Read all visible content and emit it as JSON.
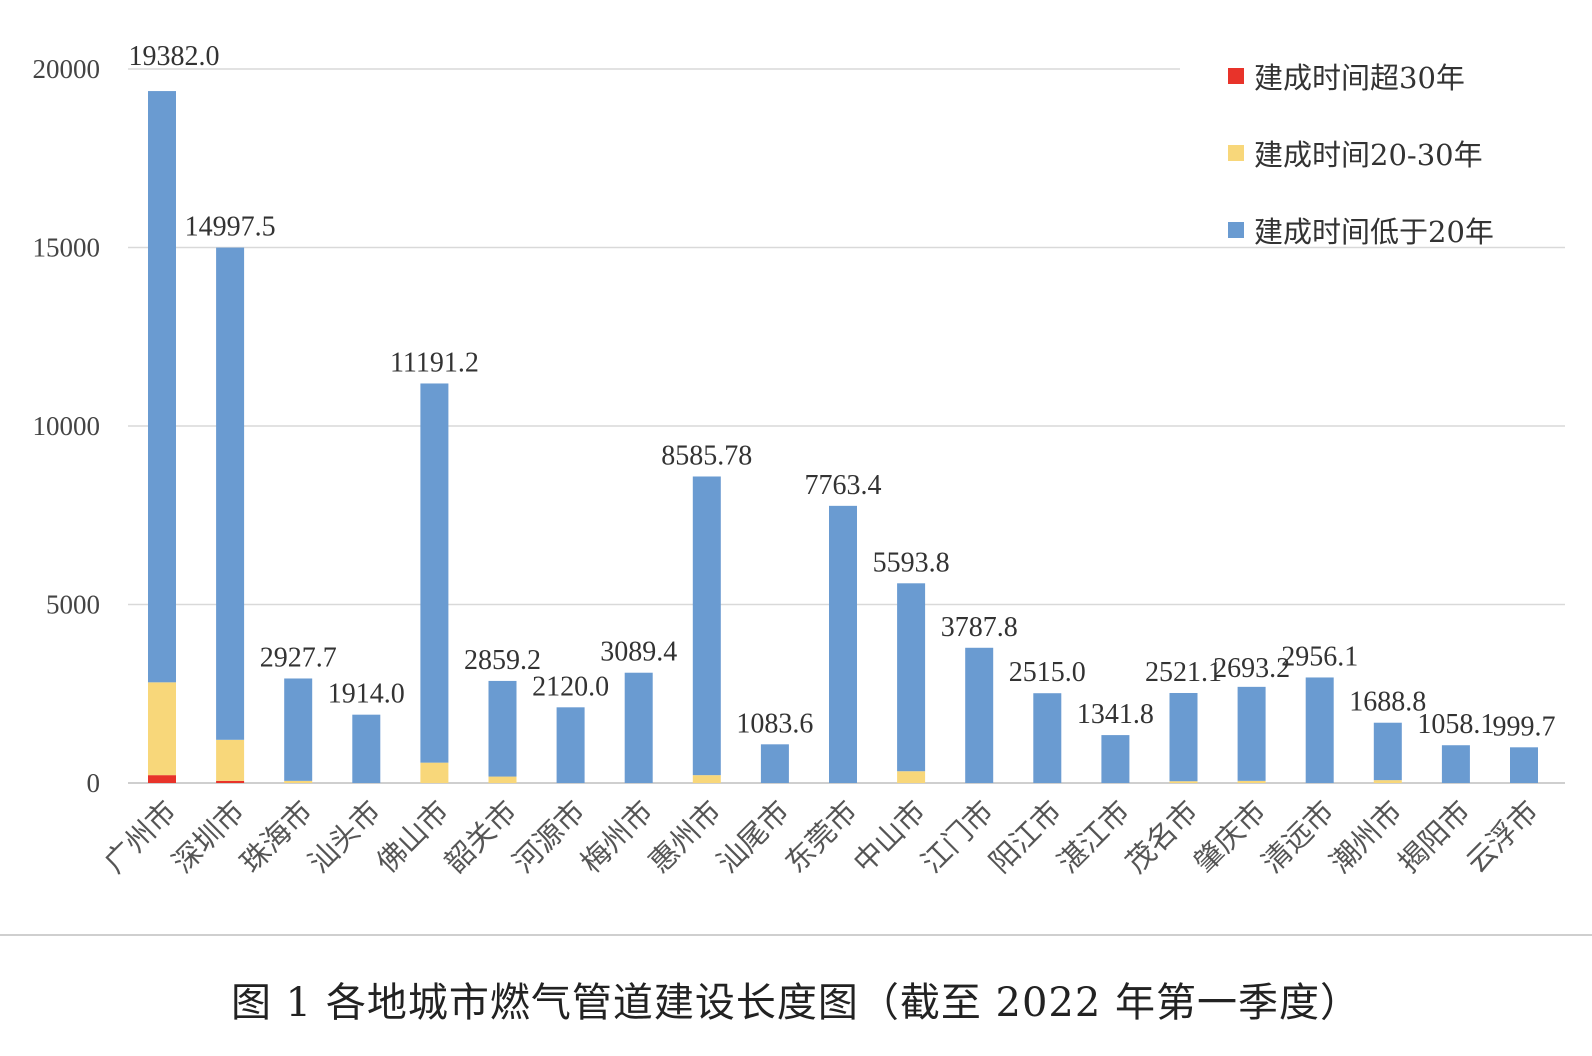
{
  "chart_data": {
    "type": "bar",
    "stacked": true,
    "categories": [
      "广州市",
      "深圳市",
      "珠海市",
      "汕头市",
      "佛山市",
      "韶关市",
      "河源市",
      "梅州市",
      "惠州市",
      "汕尾市",
      "东莞市",
      "中山市",
      "江门市",
      "阳江市",
      "湛江市",
      "茂名市",
      "肇庆市",
      "清远市",
      "潮州市",
      "揭阳市",
      "云浮市"
    ],
    "series": [
      {
        "name": "建成时间超30年",
        "color": "#e8332a",
        "values": [
          220,
          60,
          0,
          0,
          0,
          0,
          0,
          0,
          0,
          0,
          0,
          0,
          0,
          0,
          0,
          0,
          0,
          0,
          0,
          0,
          0
        ]
      },
      {
        "name": "建成时间20-30年",
        "color": "#f8d77a",
        "values": [
          2600,
          1150,
          60,
          0,
          570,
          180,
          0,
          0,
          220,
          0,
          0,
          330,
          0,
          0,
          0,
          50,
          60,
          0,
          80,
          0,
          0
        ]
      },
      {
        "name": "建成时间低于20年",
        "color": "#6a9bd1",
        "values": [
          16562,
          13787.5,
          2867.7,
          1914,
          10621.2,
          2679.2,
          2120,
          3089.4,
          8365.78,
          1083.6,
          7763.4,
          5263.8,
          3787.8,
          2515,
          1341.8,
          2471.1,
          2633.2,
          2956.1,
          1608.8,
          1058.1,
          999.7
        ]
      }
    ],
    "totals": [
      "19382.0",
      "14997.5",
      "2927.7",
      "1914.0",
      "11191.2",
      "2859.2",
      "2120.0",
      "3089.4",
      "8585.78",
      "1083.6",
      "7763.4",
      "5593.8",
      "3787.8",
      "2515.0",
      "1341.8",
      "2521.1",
      "2693.2",
      "2956.1",
      "1688.8",
      "1058.1",
      "999.7"
    ],
    "yticks": [
      "0",
      "5000",
      "10000",
      "15000",
      "20000"
    ],
    "ylim": [
      0,
      20000
    ],
    "grid": true,
    "legend": "top-right"
  },
  "caption": "图 1  各地城市燃气管道建设长度图（截至 2022 年第一季度）"
}
